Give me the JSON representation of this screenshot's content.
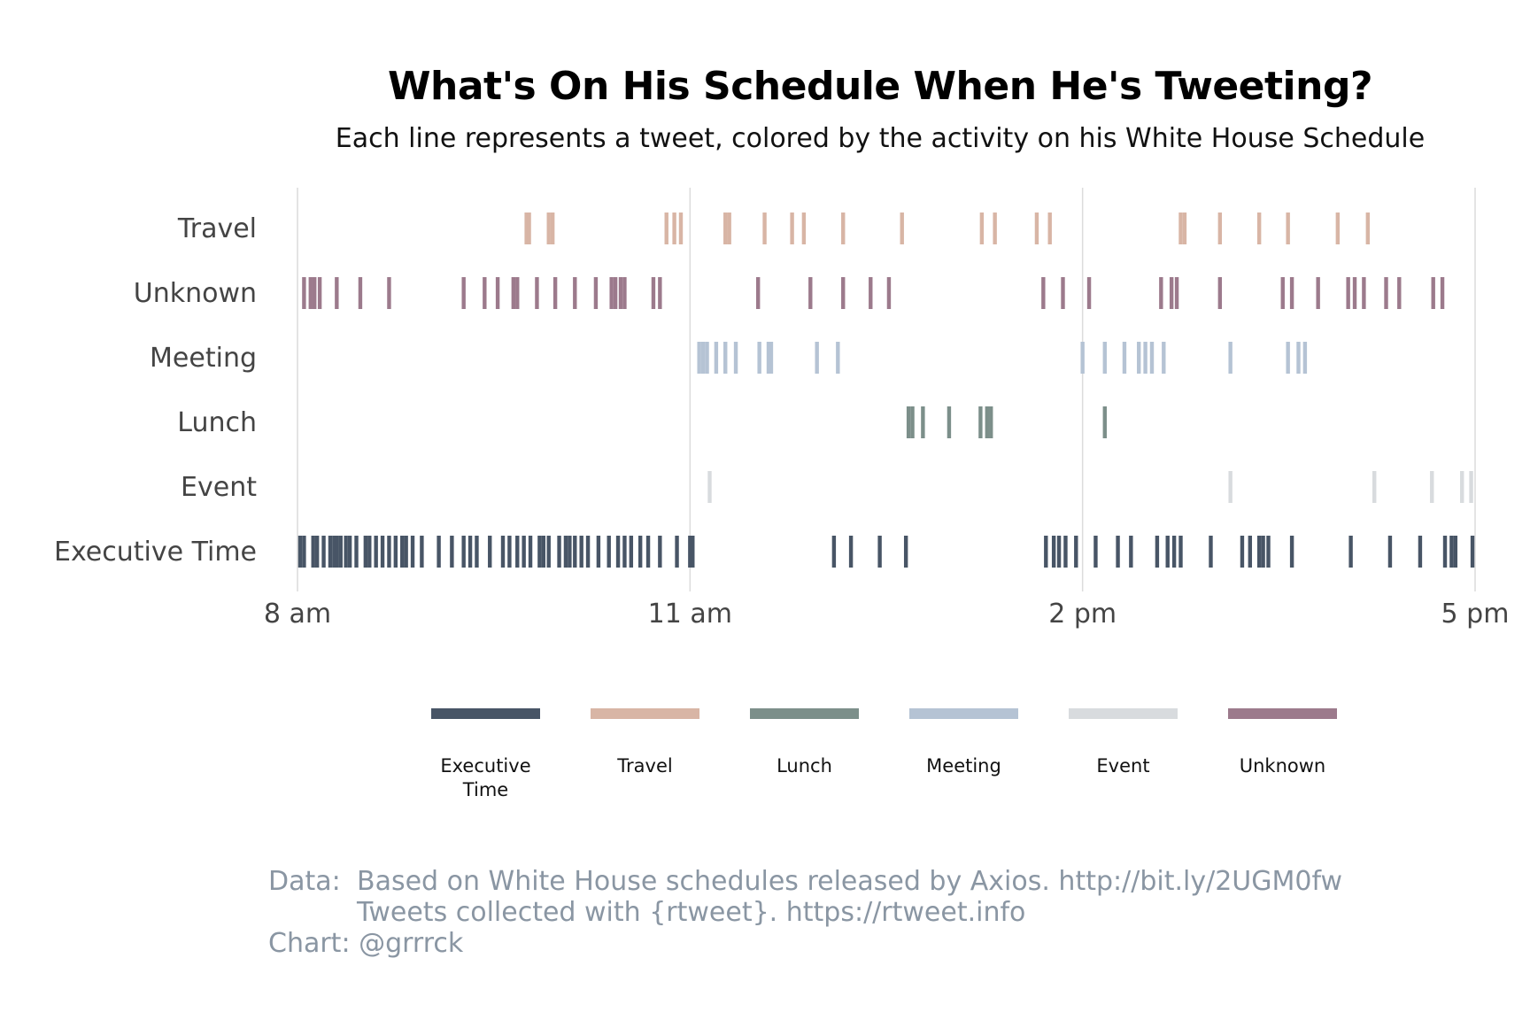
{
  "title": "What's On His Schedule When He's Tweeting?",
  "subtitle": "Each line represents a tweet, colored by the activity on his White House Schedule",
  "colors": {
    "Executive Time": "#485566",
    "Travel": "#d8b5a5",
    "Lunch": "#7c8f8a",
    "Meeting": "#b5c3d4",
    "Event": "#d8dbde",
    "Unknown": "#9c7a8c"
  },
  "legend": [
    {
      "label": "Executive\nTime",
      "color": "#485566"
    },
    {
      "label": "Travel",
      "color": "#d8b5a5"
    },
    {
      "label": "Lunch",
      "color": "#7c8f8a"
    },
    {
      "label": "Meeting",
      "color": "#b5c3d4"
    },
    {
      "label": "Event",
      "color": "#d8dbde"
    },
    {
      "label": "Unknown",
      "color": "#9c7a8c"
    }
  ],
  "caption": {
    "data_key": "Data:",
    "data_line1": "Based on White House schedules released by Axios. http://bit.ly/2UGM0fw",
    "data_line2": "Tweets collected with {rtweet}. https://rtweet.info",
    "chart_line": "Chart: @grrrck"
  },
  "chart_data": {
    "type": "strip",
    "x_unit": "hours (24h clock)",
    "xlim": [
      8,
      17
    ],
    "x_ticks": [
      {
        "value": 8,
        "label": "8 am"
      },
      {
        "value": 11,
        "label": "11 am"
      },
      {
        "value": 14,
        "label": "2 pm"
      },
      {
        "value": 17,
        "label": "5 pm"
      }
    ],
    "grid": true,
    "categories": [
      "Travel",
      "Unknown",
      "Meeting",
      "Lunch",
      "Event",
      "Executive Time"
    ],
    "series": [
      {
        "name": "Travel",
        "times": [
          9.75,
          9.77,
          9.92,
          9.95,
          10.82,
          10.88,
          10.93,
          11.27,
          11.3,
          11.57,
          11.78,
          11.87,
          12.17,
          12.62,
          13.23,
          13.33,
          13.65,
          13.75,
          14.75,
          14.78,
          15.05,
          15.35,
          15.57,
          15.95,
          16.18
        ]
      },
      {
        "name": "Unknown",
        "times": [
          8.05,
          8.1,
          8.13,
          8.17,
          8.3,
          8.48,
          8.7,
          9.27,
          9.43,
          9.53,
          9.65,
          9.68,
          9.83,
          9.97,
          10.12,
          10.28,
          10.4,
          10.43,
          10.47,
          10.5,
          10.72,
          10.77,
          11.52,
          11.92,
          12.17,
          12.38,
          12.52,
          13.7,
          13.85,
          14.05,
          14.6,
          14.68,
          14.72,
          15.05,
          15.53,
          15.6,
          15.8,
          16.03,
          16.08,
          16.15,
          16.32,
          16.42,
          16.68,
          16.75
        ]
      },
      {
        "name": "Meeting",
        "times": [
          11.07,
          11.1,
          11.13,
          11.2,
          11.27,
          11.35,
          11.53,
          11.6,
          11.62,
          11.97,
          12.13,
          14.0,
          14.17,
          14.32,
          14.43,
          14.48,
          14.53,
          14.62,
          15.13,
          15.57,
          15.65,
          15.7
        ]
      },
      {
        "name": "Lunch",
        "times": [
          12.67,
          12.7,
          12.78,
          12.98,
          13.22,
          13.27,
          13.3,
          14.17
        ]
      },
      {
        "name": "Event",
        "times": [
          11.15,
          15.13,
          16.23,
          16.67,
          16.9,
          16.97
        ]
      },
      {
        "name": "Executive Time",
        "times": [
          8.02,
          8.05,
          8.12,
          8.15,
          8.2,
          8.25,
          8.28,
          8.3,
          8.33,
          8.37,
          8.4,
          8.45,
          8.52,
          8.55,
          8.6,
          8.65,
          8.7,
          8.75,
          8.8,
          8.83,
          8.88,
          8.95,
          9.08,
          9.18,
          9.27,
          9.32,
          9.37,
          9.47,
          9.57,
          9.62,
          9.68,
          9.73,
          9.78,
          9.85,
          9.88,
          9.92,
          10.0,
          10.05,
          10.08,
          10.12,
          10.17,
          10.22,
          10.3,
          10.38,
          10.45,
          10.5,
          10.55,
          10.62,
          10.68,
          10.77,
          10.9,
          11.0,
          11.02,
          12.1,
          12.23,
          12.45,
          12.65,
          13.72,
          13.78,
          13.82,
          13.87,
          13.95,
          14.1,
          14.27,
          14.37,
          14.57,
          14.65,
          14.7,
          14.75,
          14.98,
          15.22,
          15.28,
          15.35,
          15.38,
          15.42,
          15.6,
          16.05,
          16.35,
          16.58,
          16.77,
          16.82,
          16.85,
          16.98
        ]
      }
    ]
  }
}
